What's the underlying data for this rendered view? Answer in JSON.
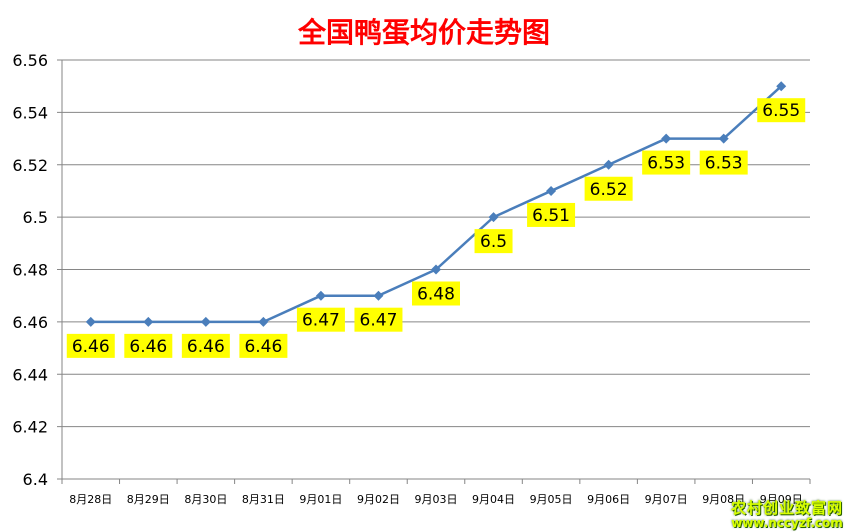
{
  "chart_data": {
    "type": "line",
    "title": "全国鸭蛋均价走势图",
    "xlabel": "",
    "ylabel": "",
    "categories": [
      "8月28日",
      "8月29日",
      "8月30日",
      "8月31日",
      "9月01日",
      "9月02日",
      "9月03日",
      "9月04日",
      "9月05日",
      "9月06日",
      "9月07日",
      "9月08日",
      "9月09日"
    ],
    "series": [
      {
        "values": [
          6.46,
          6.46,
          6.46,
          6.46,
          6.47,
          6.47,
          6.48,
          6.5,
          6.51,
          6.52,
          6.53,
          6.53,
          6.55
        ]
      }
    ],
    "data_labels": [
      "6.46",
      "6.46",
      "6.46",
      "6.46",
      "6.47",
      "6.47",
      "6.48",
      "6.5",
      "6.51",
      "6.52",
      "6.53",
      "6.53",
      "6.55"
    ],
    "yticks": [
      "6.4",
      "6.42",
      "6.44",
      "6.46",
      "6.48",
      "6.5",
      "6.52",
      "6.54",
      "6.56"
    ],
    "ylim": [
      6.4,
      6.56
    ],
    "grid": true,
    "legend": "none",
    "colors": {
      "title": "#ff0000",
      "line": "#4a7ebb",
      "label_bg": "#ffff00",
      "grid": "#868686"
    }
  },
  "watermark": {
    "line1": "农村创业致富网",
    "line2": "www.nccyzf.com"
  }
}
